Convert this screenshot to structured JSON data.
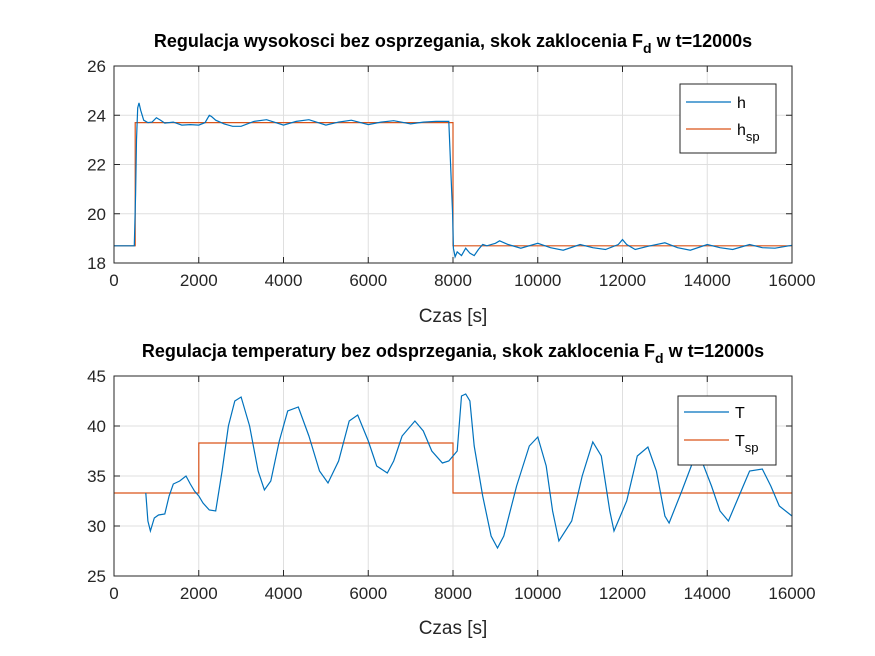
{
  "chart_data": [
    {
      "type": "line",
      "title": "Regulacja wysokosci bez osprzegania, skok zaklocenia F",
      "title_sub": "d",
      "title_tail": " w t=12000s",
      "xlabel": "Czas [s]",
      "ylabel": "",
      "xlim": [
        0,
        16000
      ],
      "ylim": [
        18,
        26
      ],
      "xticks": [
        "0",
        "2000",
        "4000",
        "6000",
        "8000",
        "10000",
        "12000",
        "14000",
        "16000"
      ],
      "yticks": [
        "18",
        "20",
        "22",
        "24",
        "26"
      ],
      "grid": true,
      "legend_position": "top-right",
      "series": [
        {
          "name": "h",
          "name_sub": "",
          "color": "#0072bd",
          "x": [
            0,
            480,
            510,
            530,
            560,
            590,
            630,
            700,
            800,
            900,
            1000,
            1100,
            1200,
            1400,
            1600,
            1800,
            2000,
            2150,
            2250,
            2300,
            2400,
            2600,
            2800,
            3000,
            3300,
            3600,
            4000,
            4300,
            4600,
            5000,
            5300,
            5600,
            6000,
            6300,
            6600,
            7000,
            7300,
            7600,
            7900,
            7990,
            8010,
            8050,
            8100,
            8200,
            8300,
            8400,
            8500,
            8600,
            8700,
            8800,
            9000,
            9100,
            9300,
            9600,
            10000,
            10300,
            10600,
            11000,
            11300,
            11600,
            11900,
            12000,
            12100,
            12300,
            12600,
            13000,
            13300,
            13600,
            14000,
            14300,
            14600,
            15000,
            15300,
            15600,
            16000
          ],
          "values": [
            18.7,
            18.7,
            20.8,
            23.0,
            24.3,
            24.5,
            24.2,
            23.8,
            23.7,
            23.72,
            23.9,
            23.8,
            23.68,
            23.72,
            23.6,
            23.62,
            23.6,
            23.7,
            24.0,
            23.95,
            23.8,
            23.65,
            23.55,
            23.55,
            23.75,
            23.82,
            23.6,
            23.75,
            23.82,
            23.6,
            23.72,
            23.8,
            23.62,
            23.72,
            23.78,
            23.65,
            23.72,
            23.75,
            23.75,
            20.0,
            18.6,
            18.25,
            18.45,
            18.3,
            18.6,
            18.4,
            18.3,
            18.55,
            18.75,
            18.7,
            18.8,
            18.9,
            18.75,
            18.6,
            18.8,
            18.62,
            18.52,
            18.75,
            18.62,
            18.55,
            18.75,
            18.95,
            18.75,
            18.55,
            18.68,
            18.82,
            18.62,
            18.52,
            18.75,
            18.62,
            18.55,
            18.75,
            18.62,
            18.6,
            18.72
          ]
        },
        {
          "name": "h",
          "name_sub": "sp",
          "color": "#d95319",
          "x": [
            0,
            500,
            500,
            8000,
            8000,
            16000
          ],
          "values": [
            18.7,
            18.7,
            23.7,
            23.7,
            18.7,
            18.7
          ]
        }
      ]
    },
    {
      "type": "line",
      "title": "Regulacja temperatury bez odsprzegania, skok zaklocenia F",
      "title_sub": "d",
      "title_tail": " w t=12000s",
      "xlabel": "Czas [s]",
      "ylabel": "",
      "xlim": [
        0,
        16000
      ],
      "ylim": [
        25,
        45
      ],
      "xticks": [
        "0",
        "2000",
        "4000",
        "6000",
        "8000",
        "10000",
        "12000",
        "14000",
        "16000"
      ],
      "yticks": [
        "25",
        "30",
        "35",
        "40",
        "45"
      ],
      "grid": true,
      "legend_position": "top-right",
      "series": [
        {
          "name": "T",
          "name_sub": "",
          "color": "#0072bd",
          "x": [
            750,
            800,
            860,
            950,
            1050,
            1200,
            1300,
            1400,
            1550,
            1700,
            1800,
            1900,
            2000,
            2100,
            2250,
            2400,
            2550,
            2700,
            2850,
            3000,
            3200,
            3400,
            3550,
            3700,
            3900,
            4100,
            4350,
            4600,
            4850,
            5050,
            5300,
            5550,
            5750,
            6000,
            6200,
            6450,
            6600,
            6800,
            7100,
            7300,
            7500,
            7750,
            7900,
            8000,
            8100,
            8200,
            8300,
            8400,
            8500,
            8700,
            8900,
            9050,
            9200,
            9500,
            9800,
            10000,
            10200,
            10350,
            10500,
            10800,
            11050,
            11300,
            11500,
            11700,
            11800,
            12100,
            12350,
            12600,
            12800,
            13000,
            13100,
            13400,
            13650,
            13900,
            14100,
            14300,
            14500,
            14800,
            15000,
            15300,
            15500,
            15700,
            16000
          ],
          "values": [
            33.3,
            30.5,
            29.5,
            30.8,
            31.1,
            31.2,
            33.0,
            34.2,
            34.5,
            35.0,
            34.2,
            33.5,
            33.0,
            32.3,
            31.6,
            31.5,
            35.5,
            40.0,
            42.5,
            42.9,
            40.0,
            35.5,
            33.6,
            34.5,
            38.5,
            41.5,
            41.9,
            39.0,
            35.5,
            34.3,
            36.5,
            40.5,
            41.1,
            38.5,
            36.0,
            35.3,
            36.5,
            39.0,
            40.5,
            39.5,
            37.5,
            36.3,
            36.5,
            37.0,
            37.5,
            43.0,
            43.2,
            42.5,
            38.0,
            33.0,
            29.0,
            27.8,
            29.0,
            34.0,
            38.0,
            38.9,
            36.0,
            31.5,
            28.5,
            30.5,
            35.0,
            38.4,
            37.0,
            31.5,
            29.5,
            32.5,
            37.0,
            37.9,
            35.5,
            31.0,
            30.3,
            33.5,
            36.3,
            36.2,
            34.0,
            31.5,
            30.5,
            33.5,
            35.5,
            35.7,
            34.0,
            32.0,
            31.0
          ]
        },
        {
          "name": "T",
          "name_sub": "sp",
          "color": "#d95319",
          "x": [
            0,
            2000,
            2000,
            8000,
            8000,
            16000
          ],
          "values": [
            33.3,
            33.3,
            38.3,
            38.3,
            33.3,
            33.3
          ]
        }
      ]
    }
  ]
}
